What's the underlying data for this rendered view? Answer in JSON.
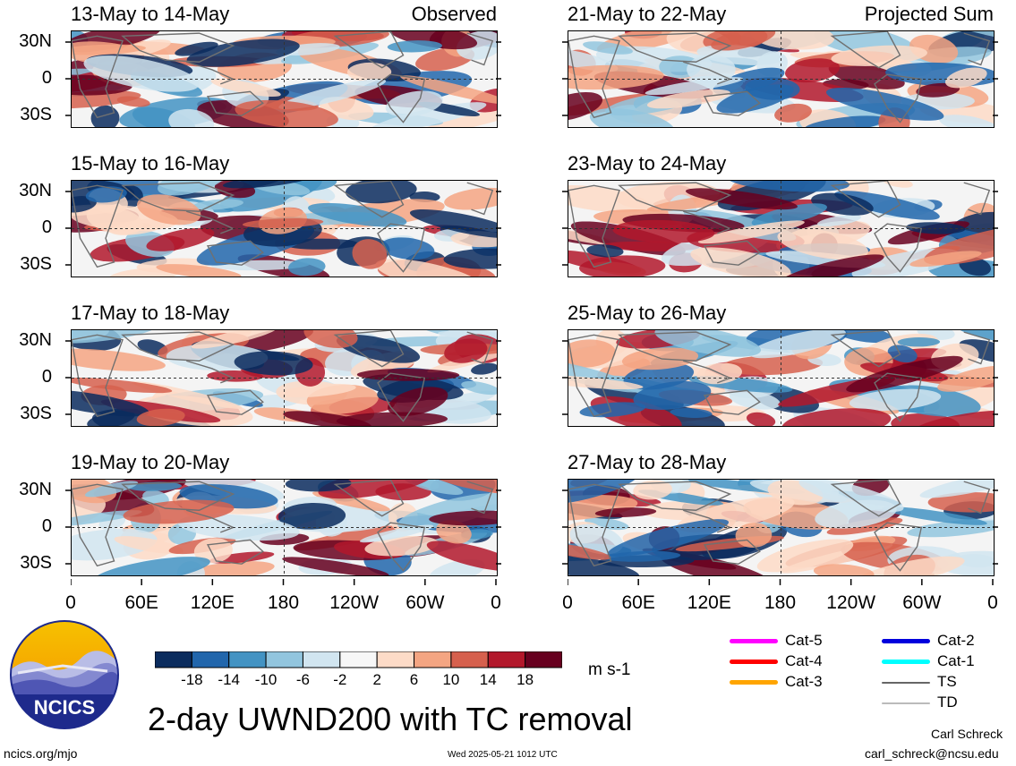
{
  "panels": [
    {
      "title": "13-May to 14-May",
      "tag": "Observed"
    },
    {
      "title": "15-May to 16-May",
      "tag": ""
    },
    {
      "title": "17-May to 18-May",
      "tag": ""
    },
    {
      "title": "19-May to 20-May",
      "tag": ""
    },
    {
      "title": "21-May to 22-May",
      "tag": "Projected Sum"
    },
    {
      "title": "23-May to 24-May",
      "tag": ""
    },
    {
      "title": "25-May to 26-May",
      "tag": ""
    },
    {
      "title": "27-May to 28-May",
      "tag": ""
    }
  ],
  "lat_labels": [
    "30N",
    "0",
    "30S"
  ],
  "lon_labels": [
    "0",
    "60E",
    "120E",
    "180",
    "120W",
    "60W",
    "0"
  ],
  "colorbar": {
    "colors": [
      "#0b2c5e",
      "#2166ac",
      "#4393c3",
      "#92c5de",
      "#d1e5f0",
      "#f7f7f7",
      "#fddbc7",
      "#f4a582",
      "#d6604d",
      "#b2182b",
      "#67001f"
    ],
    "labels": [
      "-18",
      "-14",
      "-10",
      "-6",
      "-2",
      "2",
      "6",
      "10",
      "14",
      "18"
    ],
    "units": "m s-1"
  },
  "legend": [
    {
      "label": "Cat-5",
      "color": "#ff00ff"
    },
    {
      "label": "Cat-4",
      "color": "#ff0000"
    },
    {
      "label": "Cat-3",
      "color": "#ffa500"
    },
    {
      "label": "Cat-2",
      "color": "#0000dd"
    },
    {
      "label": "Cat-1",
      "color": "#00ffff"
    },
    {
      "label": "TS",
      "color": "#666666"
    },
    {
      "label": "TD",
      "color": "#bbbbbb"
    }
  ],
  "logo_text": "NCICS",
  "main_title": "2-day UWND200 with TC removal",
  "footer": {
    "left": "ncics.org/mjo",
    "center": "Wed 2025-05-21 1012 UTC",
    "author": "Carl Schreck",
    "email": "carl_schreck@ncsu.edu"
  }
}
